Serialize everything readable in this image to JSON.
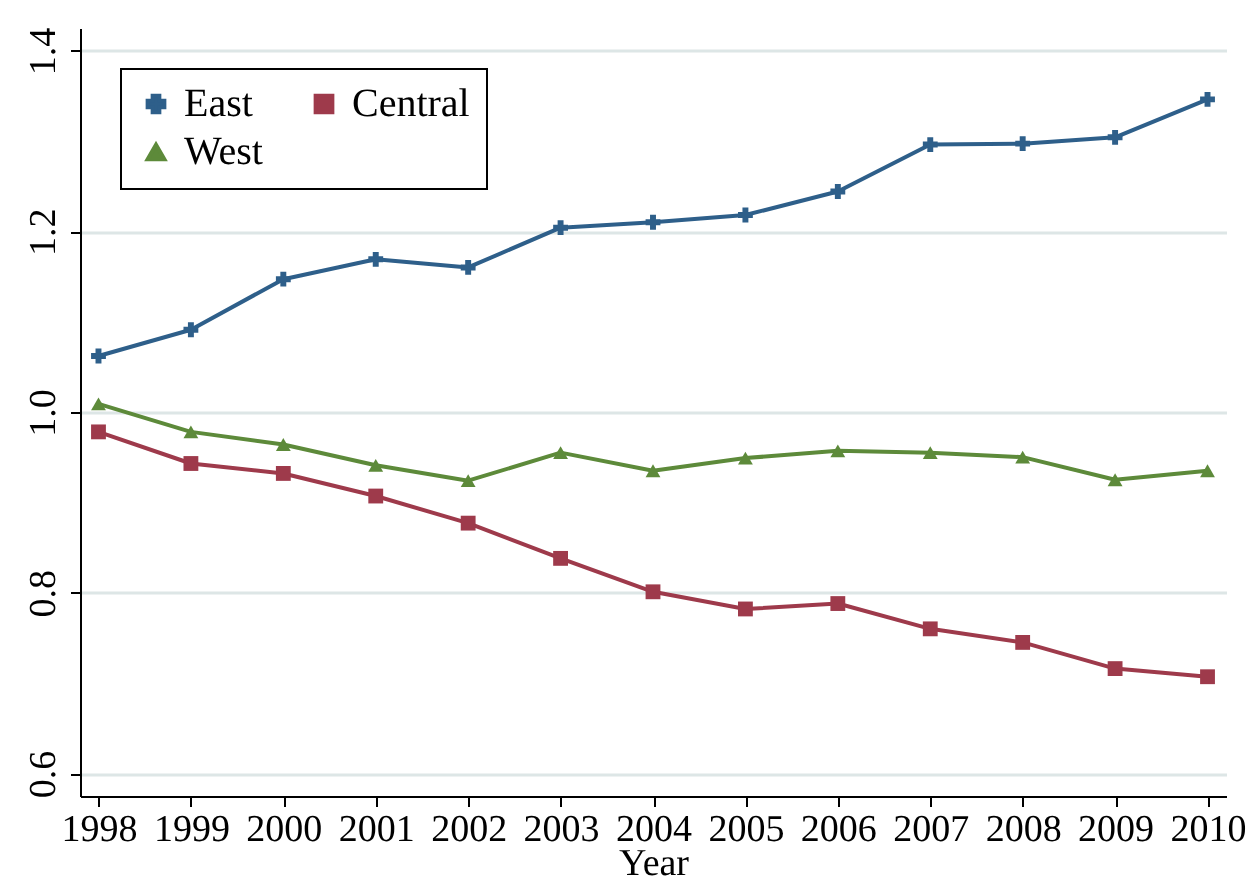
{
  "chart_data": {
    "type": "line",
    "xlabel": "Year",
    "categories": [
      "1998",
      "1999",
      "2000",
      "2001",
      "2002",
      "2003",
      "2004",
      "2005",
      "2006",
      "2007",
      "2008",
      "2009",
      "2010"
    ],
    "series": [
      {
        "name": "East",
        "color": "#2e5f8a",
        "marker": "cross",
        "values": [
          1.062,
          1.091,
          1.147,
          1.169,
          1.16,
          1.204,
          1.21,
          1.218,
          1.244,
          1.296,
          1.297,
          1.304,
          1.346
        ]
      },
      {
        "name": "Central",
        "color": "#9e3a4b",
        "marker": "square",
        "values": [
          0.978,
          0.943,
          0.932,
          0.907,
          0.877,
          0.838,
          0.801,
          0.782,
          0.788,
          0.76,
          0.745,
          0.716,
          0.707
        ]
      },
      {
        "name": "West",
        "color": "#5d8a3a",
        "marker": "triangle",
        "values": [
          1.009,
          0.978,
          0.964,
          0.941,
          0.924,
          0.955,
          0.935,
          0.949,
          0.957,
          0.955,
          0.95,
          0.925,
          0.935
        ]
      }
    ],
    "ylim": [
      0.575,
      1.425
    ],
    "yticks": [
      {
        "value": 0.6,
        "label": "0.6"
      },
      {
        "value": 0.8,
        "label": "0.8"
      },
      {
        "value": 1.0,
        "label": "1.0"
      },
      {
        "value": 1.2,
        "label": "1.2"
      },
      {
        "value": 1.4,
        "label": "1.4"
      }
    ],
    "grid": "y",
    "legend": "top left"
  }
}
